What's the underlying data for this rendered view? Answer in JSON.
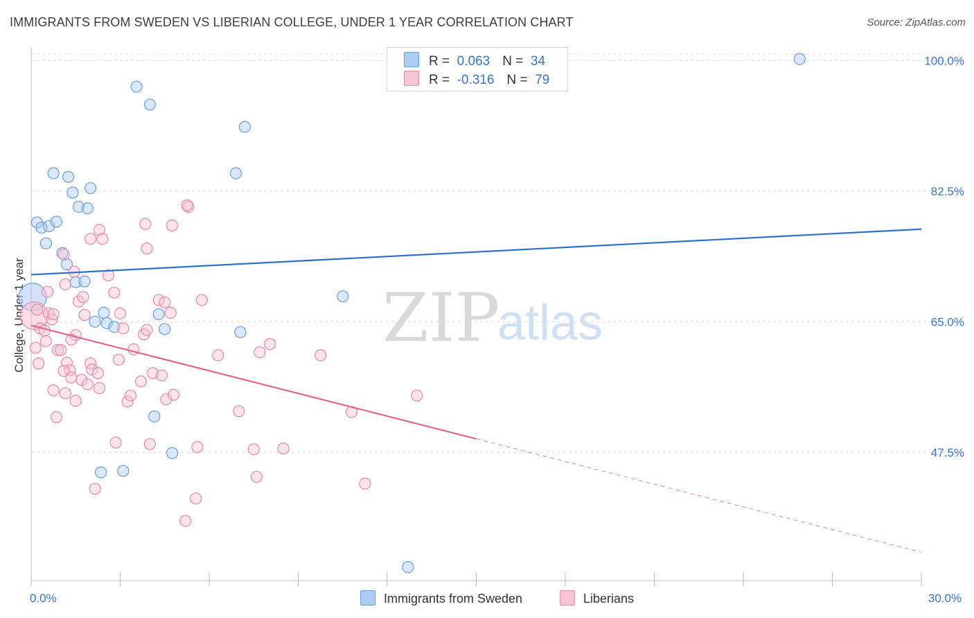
{
  "header": {
    "title": "IMMIGRANTS FROM SWEDEN VS LIBERIAN COLLEGE, UNDER 1 YEAR CORRELATION CHART",
    "source": "Source: ZipAtlas.com"
  },
  "watermark": {
    "zip": "ZIP",
    "atlas": "atlas"
  },
  "legend": {
    "rows": [
      {
        "r_label": "R =",
        "r_value": "0.063",
        "n_label": "N =",
        "n_value": "34",
        "color": "#aecbf2",
        "border": "#6a9de0"
      },
      {
        "r_label": "R =",
        "r_value": "-0.316",
        "n_label": "N =",
        "n_value": "79",
        "color": "#f8c3d4",
        "border": "#e68aa6"
      }
    ]
  },
  "bottom_legend": {
    "series1": "Immigrants from Sweden",
    "series2": "Liberians"
  },
  "chart_data": {
    "type": "scatter",
    "title": "IMMIGRANTS FROM SWEDEN VS LIBERIAN COLLEGE, UNDER 1 YEAR CORRELATION CHART",
    "xlabel": "",
    "ylabel": "College, Under 1 year",
    "xlim": [
      0,
      30
    ],
    "ylim": [
      30.3,
      101.8
    ],
    "x_tick_labels": [
      {
        "value": 0,
        "label": "0.0%"
      },
      {
        "value": 30,
        "label": "30.0%"
      }
    ],
    "x_minor_ticks": [
      3,
      6,
      9,
      12,
      15,
      18,
      21,
      24,
      27,
      30
    ],
    "y_ticks": [
      {
        "value": 100,
        "label": "100.0%"
      },
      {
        "value": 82.5,
        "label": "82.5%"
      },
      {
        "value": 65,
        "label": "65.0%"
      },
      {
        "value": 47.5,
        "label": "47.5%"
      }
    ],
    "grid": true,
    "series": [
      {
        "name": "Immigrants from Sweden",
        "color": "#6a9de0",
        "fill": "#aecbf2",
        "trend": {
          "x": [
            0,
            30
          ],
          "y": [
            71.3,
            77.4
          ],
          "color": "#2e6fcc"
        },
        "points": [
          {
            "x": 0.05,
            "y": 68.3,
            "big": true
          },
          {
            "x": 0.2,
            "y": 78.3
          },
          {
            "x": 0.35,
            "y": 77.6
          },
          {
            "x": 0.6,
            "y": 77.8
          },
          {
            "x": 0.85,
            "y": 78.4
          },
          {
            "x": 0.5,
            "y": 75.5
          },
          {
            "x": 1.05,
            "y": 74.2
          },
          {
            "x": 1.2,
            "y": 72.7
          },
          {
            "x": 1.5,
            "y": 70.3
          },
          {
            "x": 1.8,
            "y": 70.4
          },
          {
            "x": 0.75,
            "y": 84.9
          },
          {
            "x": 1.25,
            "y": 84.4
          },
          {
            "x": 1.4,
            "y": 82.3
          },
          {
            "x": 1.6,
            "y": 80.4
          },
          {
            "x": 1.9,
            "y": 80.2
          },
          {
            "x": 2.0,
            "y": 82.9
          },
          {
            "x": 3.55,
            "y": 96.5
          },
          {
            "x": 4.0,
            "y": 94.1
          },
          {
            "x": 7.2,
            "y": 91.1
          },
          {
            "x": 6.9,
            "y": 84.9
          },
          {
            "x": 2.45,
            "y": 66.2
          },
          {
            "x": 2.15,
            "y": 65.0
          },
          {
            "x": 2.55,
            "y": 64.8
          },
          {
            "x": 2.8,
            "y": 64.3
          },
          {
            "x": 4.3,
            "y": 66.0
          },
          {
            "x": 4.5,
            "y": 64.0
          },
          {
            "x": 7.05,
            "y": 63.6
          },
          {
            "x": 10.5,
            "y": 68.4
          },
          {
            "x": 4.15,
            "y": 52.3
          },
          {
            "x": 4.75,
            "y": 47.4
          },
          {
            "x": 2.35,
            "y": 44.8
          },
          {
            "x": 3.1,
            "y": 45.0
          },
          {
            "x": 12.7,
            "y": 32.1
          },
          {
            "x": 25.9,
            "y": 100.2
          }
        ]
      },
      {
        "name": "Liberians",
        "color": "#e68aa6",
        "fill": "#f8c3d4",
        "trend": {
          "x": [
            0,
            15
          ],
          "y": [
            64.5,
            49.3
          ],
          "color": "#e0668f"
        },
        "trend_extension": {
          "x": [
            15,
            30
          ],
          "y": [
            49.3,
            34.1
          ]
        },
        "points": [
          {
            "x": 0.1,
            "y": 65.8,
            "big": true
          },
          {
            "x": 0.2,
            "y": 66.6
          },
          {
            "x": 0.3,
            "y": 64.1
          },
          {
            "x": 0.45,
            "y": 63.8
          },
          {
            "x": 0.5,
            "y": 62.4
          },
          {
            "x": 0.6,
            "y": 66.1
          },
          {
            "x": 0.7,
            "y": 65.3
          },
          {
            "x": 0.75,
            "y": 66.0
          },
          {
            "x": 0.25,
            "y": 59.4
          },
          {
            "x": 0.9,
            "y": 61.2
          },
          {
            "x": 1.0,
            "y": 61.2
          },
          {
            "x": 1.2,
            "y": 59.5
          },
          {
            "x": 1.3,
            "y": 58.5
          },
          {
            "x": 1.1,
            "y": 58.4
          },
          {
            "x": 1.35,
            "y": 57.5
          },
          {
            "x": 1.5,
            "y": 63.2
          },
          {
            "x": 1.6,
            "y": 67.7
          },
          {
            "x": 1.7,
            "y": 57.2
          },
          {
            "x": 1.9,
            "y": 56.6
          },
          {
            "x": 2.0,
            "y": 59.4
          },
          {
            "x": 2.05,
            "y": 58.6
          },
          {
            "x": 2.25,
            "y": 58.1
          },
          {
            "x": 2.3,
            "y": 56.1
          },
          {
            "x": 0.75,
            "y": 55.8
          },
          {
            "x": 1.15,
            "y": 55.4
          },
          {
            "x": 1.5,
            "y": 54.4
          },
          {
            "x": 0.85,
            "y": 52.2
          },
          {
            "x": 1.1,
            "y": 74.0
          },
          {
            "x": 1.45,
            "y": 71.7
          },
          {
            "x": 1.15,
            "y": 70.0
          },
          {
            "x": 1.75,
            "y": 68.3
          },
          {
            "x": 1.8,
            "y": 65.9
          },
          {
            "x": 2.0,
            "y": 76.1
          },
          {
            "x": 2.3,
            "y": 77.3
          },
          {
            "x": 2.4,
            "y": 76.1
          },
          {
            "x": 2.8,
            "y": 68.9
          },
          {
            "x": 3.0,
            "y": 66.1
          },
          {
            "x": 3.1,
            "y": 64.1
          },
          {
            "x": 3.45,
            "y": 61.3
          },
          {
            "x": 2.95,
            "y": 59.9
          },
          {
            "x": 3.25,
            "y": 54.3
          },
          {
            "x": 3.35,
            "y": 55.1
          },
          {
            "x": 3.8,
            "y": 63.3
          },
          {
            "x": 3.9,
            "y": 63.9
          },
          {
            "x": 4.1,
            "y": 58.1
          },
          {
            "x": 4.4,
            "y": 57.8
          },
          {
            "x": 4.55,
            "y": 54.6
          },
          {
            "x": 4.8,
            "y": 55.2
          },
          {
            "x": 4.3,
            "y": 67.9
          },
          {
            "x": 4.5,
            "y": 67.6
          },
          {
            "x": 4.7,
            "y": 66.2
          },
          {
            "x": 3.85,
            "y": 78.1
          },
          {
            "x": 3.9,
            "y": 74.8
          },
          {
            "x": 5.3,
            "y": 80.4
          },
          {
            "x": 5.25,
            "y": 80.6
          },
          {
            "x": 4.75,
            "y": 77.9
          },
          {
            "x": 5.75,
            "y": 67.9
          },
          {
            "x": 6.3,
            "y": 60.5
          },
          {
            "x": 7.0,
            "y": 53.0
          },
          {
            "x": 7.7,
            "y": 60.9
          },
          {
            "x": 8.05,
            "y": 62.0
          },
          {
            "x": 9.75,
            "y": 60.5
          },
          {
            "x": 10.8,
            "y": 52.9
          },
          {
            "x": 13.0,
            "y": 55.1
          },
          {
            "x": 2.85,
            "y": 48.8
          },
          {
            "x": 4.0,
            "y": 48.6
          },
          {
            "x": 5.6,
            "y": 48.2
          },
          {
            "x": 7.5,
            "y": 47.9
          },
          {
            "x": 8.5,
            "y": 48.0
          },
          {
            "x": 2.15,
            "y": 42.6
          },
          {
            "x": 7.6,
            "y": 44.2
          },
          {
            "x": 11.25,
            "y": 43.3
          },
          {
            "x": 5.55,
            "y": 41.3
          },
          {
            "x": 5.2,
            "y": 38.3
          },
          {
            "x": 0.15,
            "y": 61.5
          },
          {
            "x": 1.35,
            "y": 62.6
          },
          {
            "x": 0.55,
            "y": 69.0
          },
          {
            "x": 2.6,
            "y": 71.2
          },
          {
            "x": 3.7,
            "y": 57.0
          }
        ]
      }
    ]
  }
}
